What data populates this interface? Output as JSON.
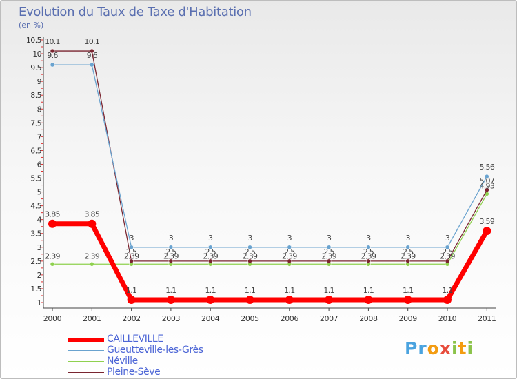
{
  "title": "Evolution du Taux de Taxe d'Habitation",
  "unit": "(en %)",
  "logo": "Proxiti",
  "chart_data": {
    "type": "line",
    "title": "Evolution du Taux de Taxe d'Habitation",
    "ylabel": "(en %)",
    "xlabel": "",
    "x": [
      "2000",
      "2001",
      "2002",
      "2003",
      "2004",
      "2005",
      "2006",
      "2007",
      "2008",
      "2009",
      "2010",
      "2011"
    ],
    "ylim": [
      1,
      10.5
    ],
    "yticks": [
      "1",
      "1.5",
      "2",
      "2.5",
      "3",
      "3.5",
      "4",
      "4.5",
      "5",
      "5.5",
      "6",
      "6.5",
      "7",
      "7.5",
      "8",
      "8.5",
      "9",
      "9.5",
      "10",
      "10.5"
    ],
    "grid": false,
    "legend_position": "bottom-left",
    "series": [
      {
        "name": "CAILLEVILLE",
        "color": "#ff0000",
        "values": [
          3.85,
          3.85,
          1.1,
          1.1,
          1.1,
          1.1,
          1.1,
          1.1,
          1.1,
          1.1,
          1.1,
          3.59
        ],
        "labels": [
          "3.85",
          "3.85",
          "1.1",
          "1.1",
          "1.1",
          "1.1",
          "1.1",
          "1.1",
          "1.1",
          "1.1",
          "1.1",
          "3.59"
        ]
      },
      {
        "name": "Gueutteville-les-Grès",
        "color": "#6aa3cf",
        "values": [
          9.6,
          9.6,
          3,
          3,
          3,
          3,
          3,
          3,
          3,
          3,
          3,
          5.56
        ],
        "labels": [
          "9.6",
          "9.6",
          "3",
          "3",
          "3",
          "3",
          "3",
          "3",
          "3",
          "3",
          "3",
          "5.56"
        ]
      },
      {
        "name": "Néville",
        "color": "#8fd14f",
        "values": [
          2.39,
          2.39,
          2.39,
          2.39,
          2.39,
          2.39,
          2.39,
          2.39,
          2.39,
          2.39,
          2.39,
          4.93
        ],
        "labels": [
          "2.39",
          "2.39",
          "2.39",
          "2.39",
          "2.39",
          "2.39",
          "2.39",
          "2.39",
          "2.39",
          "2.39",
          "2.39",
          "4.93"
        ]
      },
      {
        "name": "Pleine-Sève",
        "color": "#7a2530",
        "values": [
          10.1,
          10.1,
          2.5,
          2.5,
          2.5,
          2.5,
          2.5,
          2.5,
          2.5,
          2.5,
          2.5,
          5.07
        ],
        "labels": [
          "10.1",
          "10.1",
          "2.5",
          "2.5",
          "2.5",
          "2.5",
          "2.5",
          "2.5",
          "2.5",
          "2.5",
          "2.5",
          "5.07"
        ]
      }
    ]
  }
}
